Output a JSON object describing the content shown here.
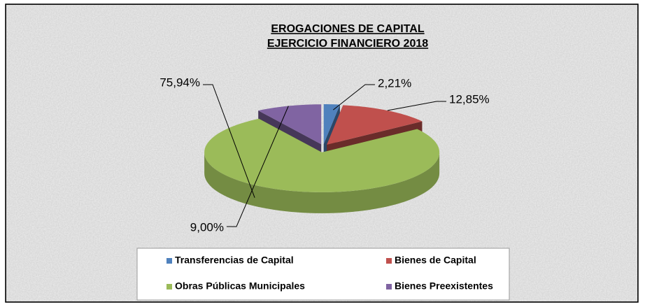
{
  "chart_data": {
    "type": "pie3d",
    "title": "EROGACIONES DE CAPITAL",
    "subtitle": "EJERCICIO FINANCIERO 2018",
    "categories": [
      "Transferencias de Capital",
      "Bienes de Capital",
      "Obras Públicas Municipales",
      "Bienes Preexistentes"
    ],
    "values": [
      2.21,
      12.85,
      75.94,
      9.0
    ],
    "value_labels": [
      "2,21%",
      "12,85%",
      "75,94%",
      "9,00%"
    ],
    "colors": [
      "#4f81bd",
      "#c0504d",
      "#9bbb59",
      "#8064a2"
    ],
    "legend": "bottom"
  }
}
